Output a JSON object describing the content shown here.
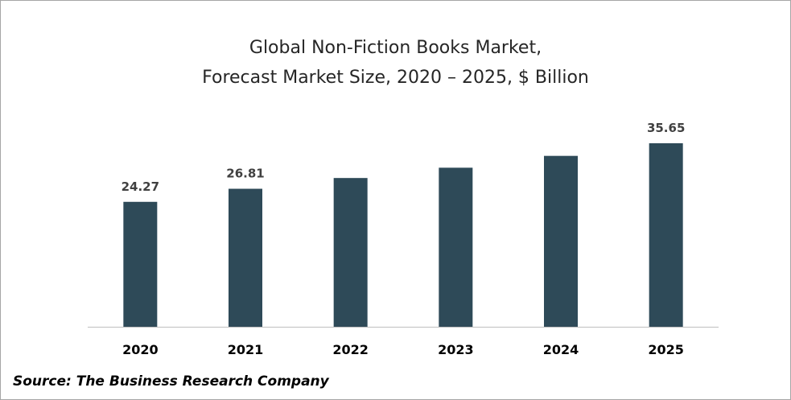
{
  "chart_data": {
    "type": "bar",
    "title_line1": "Global Non-Fiction Books Market,",
    "title_line2": "Forecast Market Size, 2020 – 2025, $ Billion",
    "categories": [
      "2020",
      "2021",
      "2022",
      "2023",
      "2024",
      "2025"
    ],
    "values": [
      24.27,
      26.81,
      28.9,
      30.9,
      33.2,
      35.65
    ],
    "data_labels": [
      "24.27",
      "26.81",
      "",
      "",
      "",
      "35.65"
    ],
    "ylim": [
      0,
      40
    ],
    "grid": false,
    "legend": false,
    "bar_color": "#2e4a58",
    "axis_color": "#bfbfbf"
  },
  "source_text": "Source: The Business Research Company"
}
